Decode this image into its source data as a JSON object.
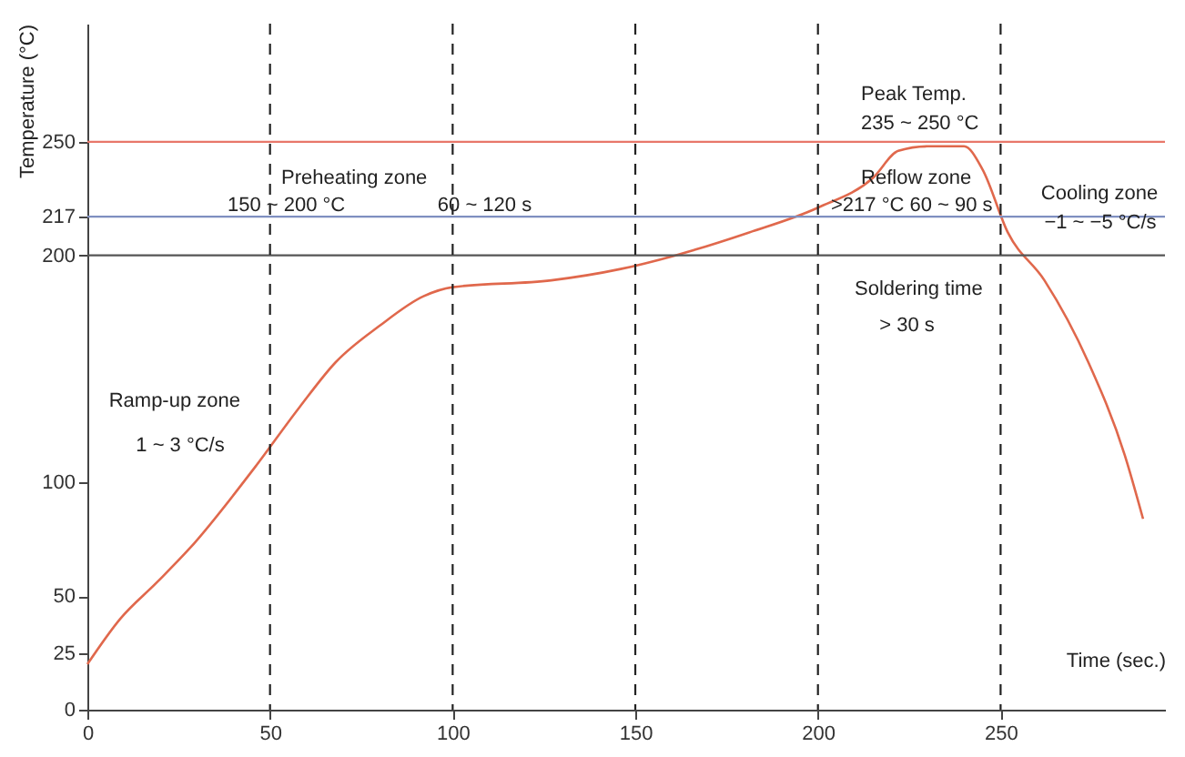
{
  "chart_data": {
    "type": "line",
    "xlabel": "Time (sec.)",
    "ylabel": "Temperature (°C)",
    "x": [
      0,
      9,
      19,
      28,
      46,
      58,
      68,
      80,
      92,
      100,
      127,
      146,
      161,
      181,
      200,
      215,
      222,
      230,
      240,
      245,
      252,
      262,
      274,
      284,
      289
    ],
    "series": [
      {
        "color": "#e0684c",
        "values": [
          20,
          40,
          56,
          71,
          107,
          133,
          153,
          169,
          182,
          186,
          189,
          194,
          200,
          210,
          221,
          234,
          246,
          248,
          248,
          238,
          210,
          189,
          153,
          112,
          84
        ]
      }
    ],
    "xlim": [
      0,
      295
    ],
    "ylim": [
      0,
      302
    ],
    "xticks": [
      0,
      50,
      100,
      150,
      200,
      250
    ],
    "yticks": [
      0,
      25,
      50,
      100,
      200,
      217,
      250
    ],
    "ref_lines": [
      {
        "axis": "y",
        "value": 250,
        "color": "#e8776a",
        "line_style": "solid"
      },
      {
        "axis": "y",
        "value": 217,
        "color": "#7f8fc0",
        "line_style": "solid"
      },
      {
        "axis": "y",
        "value": 200,
        "color": "#555555",
        "line_style": "solid"
      },
      {
        "axis": "x",
        "value": 50,
        "color": "#222222",
        "line_style": "dashed"
      },
      {
        "axis": "x",
        "value": 100,
        "color": "#222222",
        "line_style": "dashed"
      },
      {
        "axis": "x",
        "value": 150,
        "color": "#222222",
        "line_style": "dashed"
      },
      {
        "axis": "x",
        "value": 200,
        "color": "#222222",
        "line_style": "dashed"
      },
      {
        "axis": "x",
        "value": 250,
        "color": "#222222",
        "line_style": "dashed"
      }
    ],
    "annotations": [
      "Ramp-up zone",
      "1 ~ 3 °C/s",
      "Preheating zone",
      "150 ~ 200 °C",
      "60 ~ 120 s",
      "Peak Temp.",
      "235 ~ 250 °C",
      "Reflow zone",
      ">217 °C  60 ~ 90 s",
      "Soldering time",
      "> 30 s",
      "Cooling zone",
      "−1 ~ −5 °C/s"
    ]
  }
}
